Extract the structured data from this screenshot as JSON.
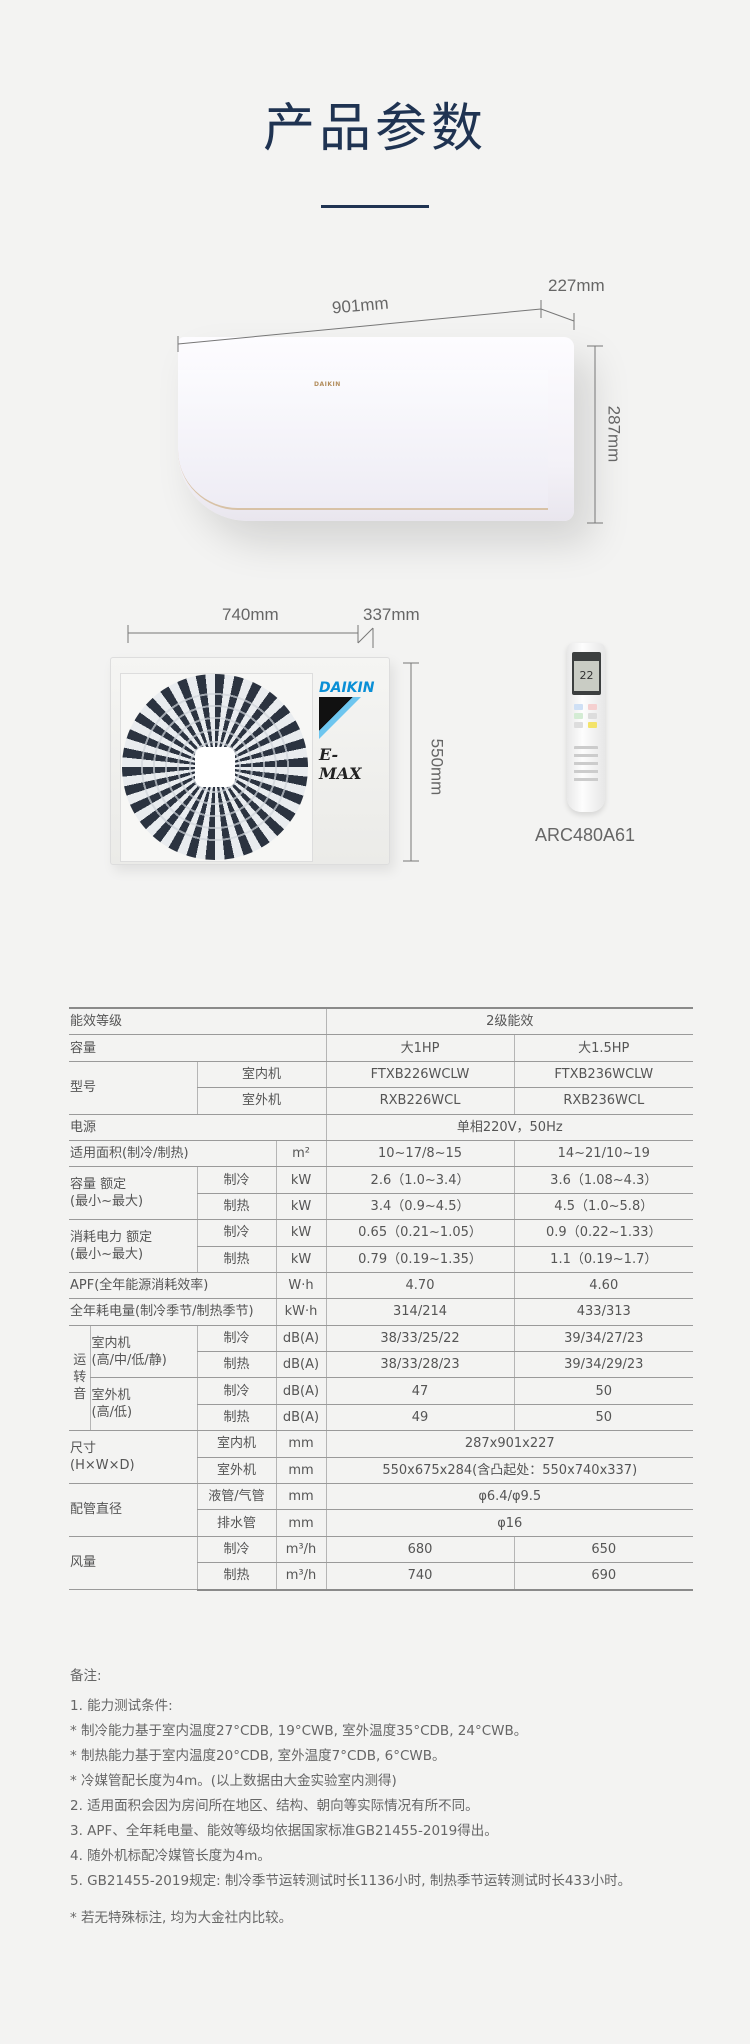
{
  "header": {
    "title": "产品参数"
  },
  "indoor_unit": {
    "width_label": "901mm",
    "depth_label": "227mm",
    "height_label": "287mm",
    "logo": "DAIKIN"
  },
  "outdoor_unit": {
    "width_label": "740mm",
    "depth_label": "337mm",
    "height_label": "550mm",
    "logo": "DAIKIN",
    "series": "E-MAX"
  },
  "remote": {
    "model": "ARC480A61",
    "display": "22"
  },
  "colors": {
    "title": "#1f3352",
    "daikin_blue": "#0a8fd6",
    "text": "#555555"
  },
  "spec_table": {
    "rows": [
      [
        "能效等级",
        "2级能效"
      ],
      [
        "容量",
        "大1HP",
        "大1.5HP"
      ],
      [
        "型号",
        "室内机",
        "FTXB226WCLW",
        "FTXB236WCLW"
      ],
      [
        "室外机",
        "RXB226WCL",
        "RXB236WCL"
      ],
      [
        "电源",
        "单相220V，50Hz"
      ],
      [
        "适用面积(制冷/制热)",
        "m²",
        "10~17/8~15",
        "14~21/10~19"
      ],
      [
        "容量 额定\n(最小~最大)",
        "制冷",
        "kW",
        "2.6（1.0~3.4）",
        "3.6（1.08~4.3）"
      ],
      [
        "制热",
        "kW",
        "3.4（0.9~4.5）",
        "4.5（1.0~5.8）"
      ],
      [
        "消耗电力 额定\n(最小~最大)",
        "制冷",
        "kW",
        "0.65（0.21~1.05）",
        "0.9（0.22~1.33）"
      ],
      [
        "制热",
        "kW",
        "0.79（0.19~1.35）",
        "1.1（0.19~1.7）"
      ],
      [
        "APF(全年能源消耗效率)",
        "W·h",
        "4.70",
        "4.60"
      ],
      [
        "全年耗电量(制冷季节/制热季节)",
        "kW·h",
        "314/214",
        "433/313"
      ],
      [
        "运\n转\n音",
        "室内机\n(高/中/低/静)",
        "制冷",
        "dB(A)",
        "38/33/25/22",
        "39/34/27/23"
      ],
      [
        "制热",
        "dB(A)",
        "38/33/28/23",
        "39/34/29/23"
      ],
      [
        "室外机\n(高/低)",
        "制冷",
        "dB(A)",
        "47",
        "50"
      ],
      [
        "制热",
        "dB(A)",
        "49",
        "50"
      ],
      [
        "尺寸\n(H×W×D)",
        "室内机",
        "mm",
        "287x901x227"
      ],
      [
        "室外机",
        "mm",
        "550x675x284(含凸起处：550x740x337)"
      ],
      [
        "配管直径",
        "液管/气管",
        "mm",
        "φ6.4/φ9.5"
      ],
      [
        "排水管",
        "mm",
        "φ16"
      ],
      [
        "风量",
        "制冷",
        "m³/h",
        "680",
        "650"
      ],
      [
        "制热",
        "m³/h",
        "740",
        "690"
      ]
    ]
  },
  "notes": {
    "heading": "备注:",
    "items": [
      "1. 能力测试条件:",
      "*  制冷能力基于室内温度27°CDB, 19°CWB, 室外温度35°CDB, 24°CWB。",
      "*  制热能力基于室内温度20°CDB, 室外温度7°CDB, 6°CWB。",
      "*  冷媒管配长度为4m。(以上数据由大金实验室内测得)",
      "2. 适用面积会因为房间所在地区、结构、朝向等实际情况有所不同。",
      "3. APF、全年耗电量、能效等级均依据国家标准GB21455-2019得出。",
      "4. 随外机标配冷媒管长度为4m。",
      "5. GB21455-2019规定: 制冷季节运转测试时长1136小时, 制热季节运转测试时长433小时。"
    ],
    "footnote": "*  若无特殊标注, 均为大金社内比较。"
  }
}
